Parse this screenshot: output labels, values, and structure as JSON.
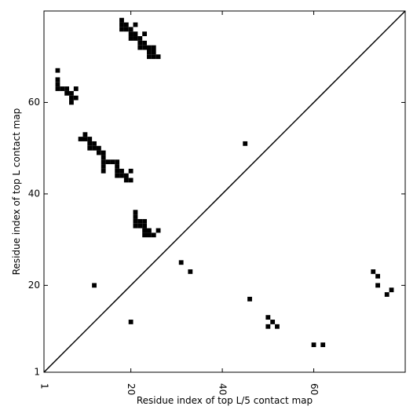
{
  "chart_data": {
    "type": "scatter",
    "xlabel": "Residue index of top L/5 contact map",
    "ylabel": "Residue index of top L contact map",
    "color": "#000000",
    "xlim": [
      1,
      80
    ],
    "ylim": [
      1,
      80
    ],
    "xticks": [
      1,
      20,
      40,
      60
    ],
    "yticks": [
      1,
      20,
      40,
      60
    ],
    "diagonal": true,
    "x": [
      18,
      18,
      19,
      21,
      18,
      19,
      20,
      20,
      21,
      23,
      20,
      21,
      22,
      22,
      23,
      22,
      23,
      24,
      25,
      24,
      25,
      24,
      25,
      26,
      4,
      4,
      4,
      4,
      5,
      6,
      8,
      6,
      7,
      7,
      8,
      7,
      10,
      9,
      10,
      11,
      11,
      12,
      11,
      12,
      13,
      13,
      14,
      14,
      14,
      15,
      16,
      17,
      14,
      17,
      14,
      17,
      18,
      20,
      17,
      18,
      19,
      19,
      20,
      21,
      21,
      21,
      22,
      23,
      21,
      22,
      23,
      23,
      24,
      26,
      23,
      24,
      25,
      12,
      45,
      20,
      31,
      33,
      46,
      50,
      51,
      50,
      52,
      60,
      62,
      73,
      74,
      74,
      76,
      77
    ],
    "y": [
      78,
      77,
      77,
      77,
      76,
      76,
      76,
      75,
      75,
      75,
      74,
      74,
      74,
      73,
      73,
      72,
      72,
      72,
      72,
      71,
      71,
      70,
      70,
      70,
      67,
      65,
      64,
      63,
      63,
      63,
      63,
      62,
      62,
      61,
      61,
      60,
      53,
      52,
      52,
      52,
      51,
      51,
      50,
      50,
      50,
      49,
      49,
      48,
      47,
      47,
      47,
      47,
      46,
      46,
      45,
      45,
      45,
      45,
      44,
      44,
      44,
      43,
      43,
      36,
      35,
      34,
      34,
      34,
      33,
      33,
      33,
      32,
      32,
      32,
      31,
      31,
      31,
      20,
      51,
      12,
      25,
      23,
      17,
      13,
      12,
      11,
      11,
      7,
      7,
      23,
      22,
      20,
      18,
      19
    ]
  }
}
